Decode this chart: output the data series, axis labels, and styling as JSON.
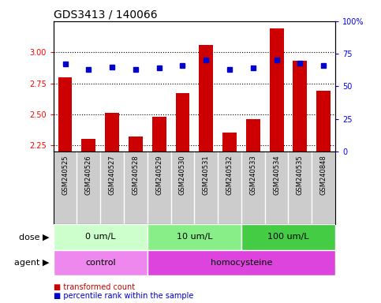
{
  "title": "GDS3413 / 140066",
  "samples": [
    "GSM240525",
    "GSM240526",
    "GSM240527",
    "GSM240528",
    "GSM240529",
    "GSM240530",
    "GSM240531",
    "GSM240532",
    "GSM240533",
    "GSM240534",
    "GSM240535",
    "GSM240848"
  ],
  "transformed_count": [
    2.8,
    2.3,
    2.51,
    2.32,
    2.48,
    2.67,
    3.06,
    2.35,
    2.46,
    3.19,
    2.93,
    2.69
  ],
  "percentile_rank": [
    67,
    63,
    65,
    63,
    64,
    66,
    70,
    63,
    64,
    70,
    68,
    66
  ],
  "ylim_left": [
    2.2,
    3.25
  ],
  "ylim_right": [
    0,
    100
  ],
  "yticks_left": [
    2.25,
    2.5,
    2.75,
    3.0
  ],
  "yticks_right": [
    0,
    25,
    50,
    75,
    100
  ],
  "bar_color": "#cc0000",
  "dot_color": "#0000cc",
  "background_color": "#ffffff",
  "sample_bg": "#cccccc",
  "dose_groups": [
    {
      "label": "0 um/L",
      "start": 0,
      "end": 4,
      "color": "#ccffcc"
    },
    {
      "label": "10 um/L",
      "start": 4,
      "end": 8,
      "color": "#88ee88"
    },
    {
      "label": "100 um/L",
      "start": 8,
      "end": 12,
      "color": "#44cc44"
    }
  ],
  "agent_groups": [
    {
      "label": "control",
      "start": 0,
      "end": 4,
      "color": "#ee88ee"
    },
    {
      "label": "homocysteine",
      "start": 4,
      "end": 12,
      "color": "#dd44dd"
    }
  ],
  "dose_label": "dose",
  "agent_label": "agent",
  "legend_red_label": "transformed count",
  "legend_blue_label": "percentile rank within the sample",
  "grid_linestyle": "dotted",
  "title_fontsize": 10,
  "tick_fontsize": 7,
  "sample_fontsize": 6,
  "row_fontsize": 8,
  "legend_fontsize": 7
}
